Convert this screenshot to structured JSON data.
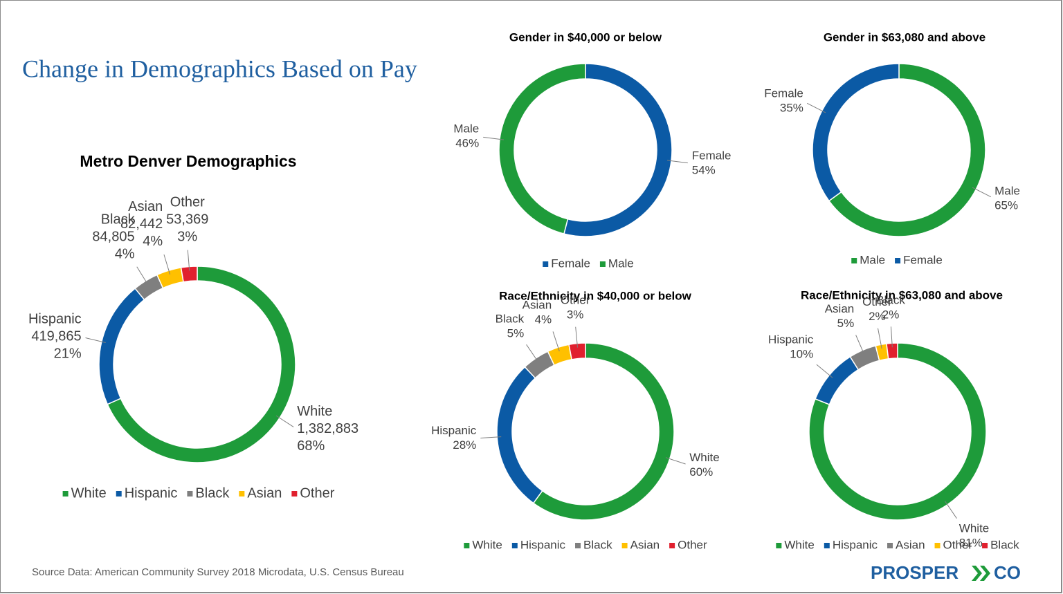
{
  "title": "Change in Demographics Based on Pay",
  "source": "Source Data: American Community Survey 2018 Microdata, U.S. Census Bureau",
  "logo": [
    "PROSPER",
    "CO"
  ],
  "chart_data": [
    {
      "type": "donut",
      "title": "Metro Denver Demographics",
      "categories": [
        "White",
        "Hispanic",
        "Black",
        "Asian",
        "Other"
      ],
      "colors": [
        "#1e9b3a",
        "#0b5aa5",
        "#7f7f7f",
        "#ffc000",
        "#e0202e"
      ],
      "values": [
        1382883,
        419865,
        84805,
        82442,
        53369
      ],
      "value_labels": [
        "1,382,883",
        "419,865",
        "84,805",
        "82,442",
        "53,369"
      ],
      "percent_labels": [
        "68%",
        "21%",
        "4%",
        "4%",
        "3%"
      ],
      "legend": [
        "White",
        "Hispanic",
        "Black",
        "Asian",
        "Other"
      ],
      "legend_colors": [
        "#1e9b3a",
        "#0b5aa5",
        "#7f7f7f",
        "#ffc000",
        "#e0202e"
      ]
    },
    {
      "type": "donut",
      "title": "Gender in $40,000 or below",
      "categories": [
        "Female",
        "Male"
      ],
      "colors": [
        "#0b5aa5",
        "#1e9b3a"
      ],
      "values": [
        54,
        46
      ],
      "value_labels": [
        "54%",
        "46%"
      ],
      "legend": [
        "Female",
        "Male"
      ],
      "legend_colors": [
        "#0b5aa5",
        "#1e9b3a"
      ]
    },
    {
      "type": "donut",
      "title": "Gender in $63,080 and above",
      "categories": [
        "Male",
        "Female"
      ],
      "colors": [
        "#1e9b3a",
        "#0b5aa5"
      ],
      "values": [
        65,
        35
      ],
      "value_labels": [
        "65%",
        "35%"
      ],
      "legend": [
        "Male",
        "Female"
      ],
      "legend_colors": [
        "#1e9b3a",
        "#0b5aa5"
      ]
    },
    {
      "type": "donut",
      "title": "Race/Ethnicity in $40,000 or below",
      "categories": [
        "White",
        "Hispanic",
        "Black",
        "Asian",
        "Other"
      ],
      "colors": [
        "#1e9b3a",
        "#0b5aa5",
        "#7f7f7f",
        "#ffc000",
        "#e0202e"
      ],
      "values": [
        60,
        28,
        5,
        4,
        3
      ],
      "value_labels": [
        "60%",
        "28%",
        "5%",
        "4%",
        "3%"
      ],
      "legend": [
        "White",
        "Hispanic",
        "Black",
        "Asian",
        "Other"
      ],
      "legend_colors": [
        "#1e9b3a",
        "#0b5aa5",
        "#7f7f7f",
        "#ffc000",
        "#e0202e"
      ]
    },
    {
      "type": "donut",
      "title": "Race/Ethnicity in $63,080 and above",
      "categories": [
        "White",
        "Hispanic",
        "Asian",
        "Other",
        "Black"
      ],
      "colors": [
        "#1e9b3a",
        "#0b5aa5",
        "#7f7f7f",
        "#ffc000",
        "#e0202e"
      ],
      "values": [
        81,
        10,
        5,
        2,
        2
      ],
      "value_labels": [
        "81%",
        "10%",
        "5%",
        "2%",
        "2%"
      ],
      "legend": [
        "White",
        "Hispanic",
        "Asian",
        "Other",
        "Black"
      ],
      "legend_colors": [
        "#1e9b3a",
        "#0b5aa5",
        "#7f7f7f",
        "#ffc000",
        "#e0202e"
      ]
    }
  ]
}
